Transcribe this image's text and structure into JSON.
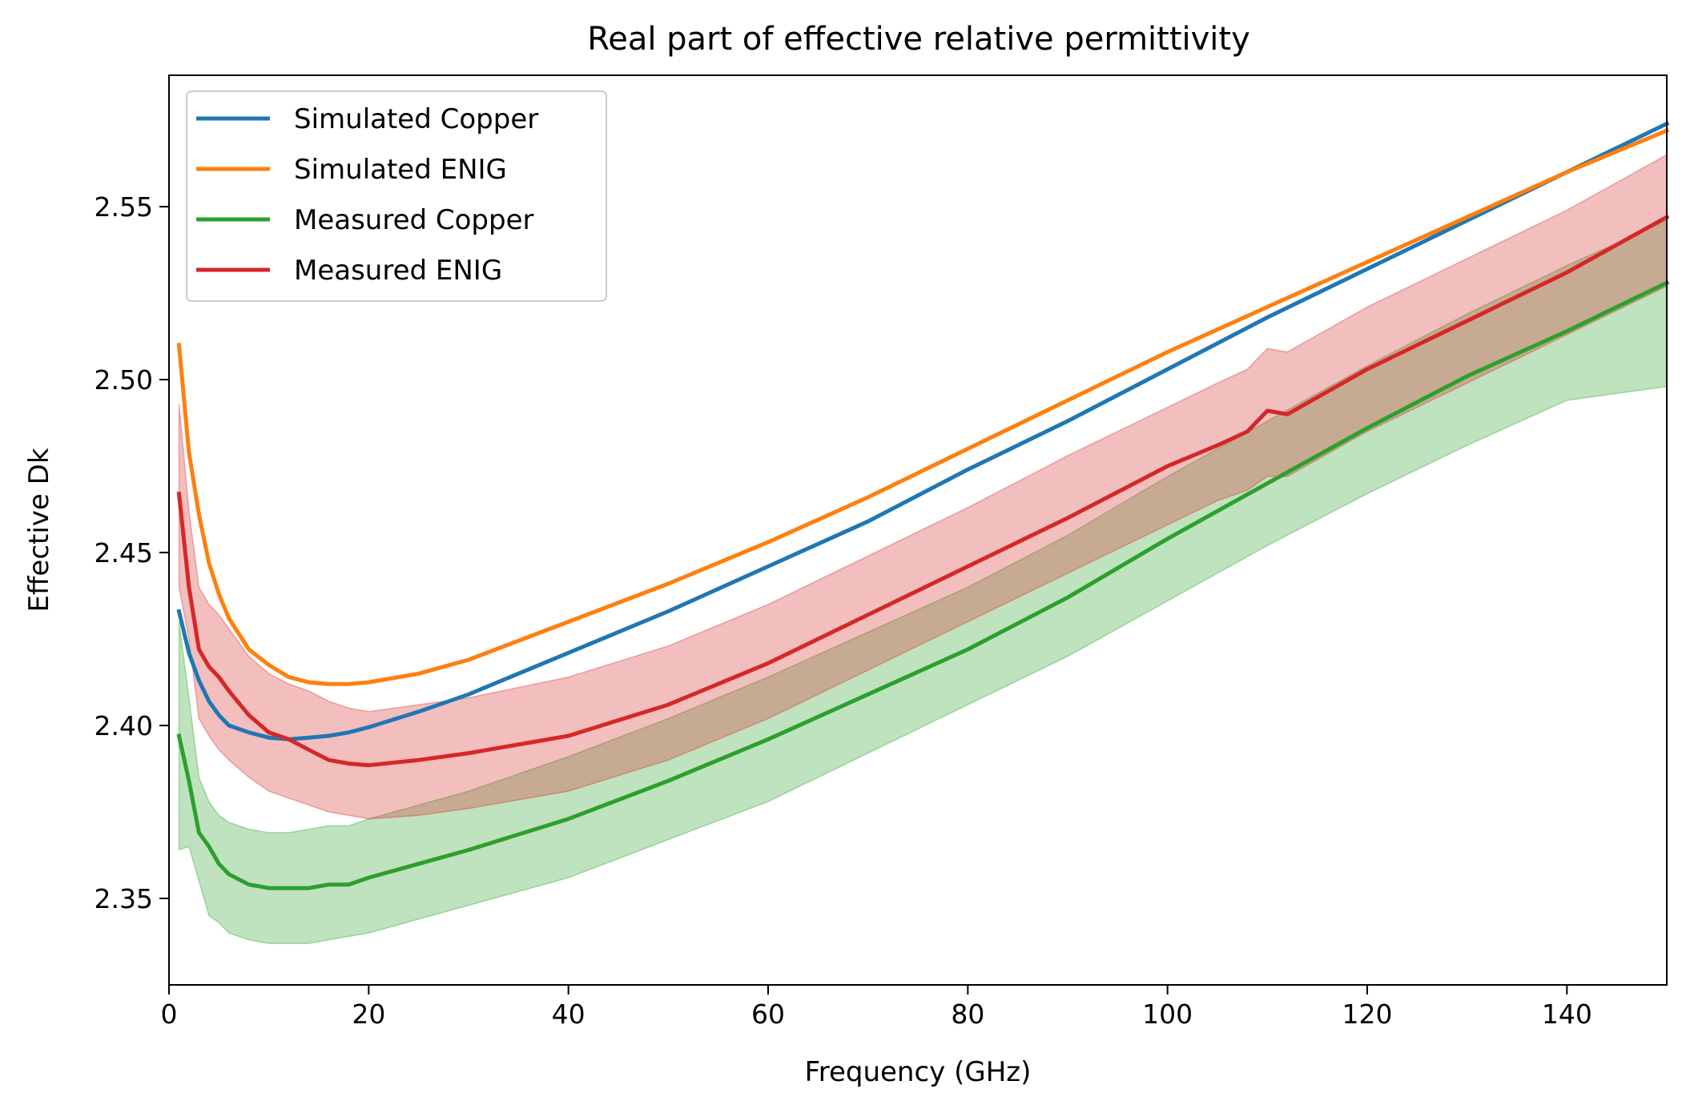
{
  "chart_data": {
    "type": "line",
    "title": "Real part of effective relative permittivity",
    "xlabel": "Frequency (GHz)",
    "ylabel": "Effective Dk",
    "xlim": [
      0,
      150
    ],
    "ylim": [
      2.325,
      2.588
    ],
    "xticks": [
      0,
      20,
      40,
      60,
      80,
      100,
      120,
      140
    ],
    "yticks": [
      2.35,
      2.4,
      2.45,
      2.5,
      2.55
    ],
    "ytick_labels": [
      "2.35",
      "2.40",
      "2.45",
      "2.50",
      "2.55"
    ],
    "grid": false,
    "legend": "upper-left",
    "series": [
      {
        "name": "Simulated Copper",
        "color": "#1f77b4",
        "x": [
          1,
          2,
          3,
          4,
          5,
          6,
          8,
          10,
          12,
          14,
          16,
          18,
          20,
          25,
          30,
          40,
          50,
          60,
          70,
          80,
          90,
          100,
          110,
          120,
          130,
          140,
          150
        ],
        "y": [
          2.433,
          2.421,
          2.413,
          2.407,
          2.403,
          2.4,
          2.398,
          2.3965,
          2.396,
          2.3965,
          2.397,
          2.398,
          2.3995,
          2.404,
          2.409,
          2.421,
          2.433,
          2.446,
          2.459,
          2.474,
          2.488,
          2.503,
          2.518,
          2.532,
          2.546,
          2.56,
          2.574
        ]
      },
      {
        "name": "Simulated ENIG",
        "color": "#ff7f0e",
        "x": [
          1,
          2,
          3,
          4,
          5,
          6,
          8,
          10,
          12,
          14,
          16,
          18,
          20,
          25,
          30,
          40,
          50,
          60,
          70,
          80,
          90,
          100,
          110,
          120,
          130,
          140,
          150
        ],
        "y": [
          2.51,
          2.479,
          2.461,
          2.447,
          2.438,
          2.431,
          2.422,
          2.4175,
          2.414,
          2.4125,
          2.412,
          2.412,
          2.4125,
          2.415,
          2.419,
          2.43,
          2.441,
          2.453,
          2.466,
          2.48,
          2.494,
          2.508,
          2.521,
          2.534,
          2.547,
          2.56,
          2.572
        ]
      },
      {
        "name": "Measured Copper",
        "color": "#2ca02c",
        "x": [
          1,
          2,
          3,
          4,
          5,
          6,
          8,
          10,
          12,
          14,
          16,
          18,
          20,
          25,
          30,
          40,
          50,
          60,
          70,
          80,
          90,
          100,
          110,
          120,
          130,
          140,
          150
        ],
        "y": [
          2.397,
          2.384,
          2.369,
          2.365,
          2.36,
          2.357,
          2.354,
          2.353,
          2.353,
          2.353,
          2.354,
          2.354,
          2.356,
          2.36,
          2.364,
          2.373,
          2.384,
          2.396,
          2.409,
          2.422,
          2.437,
          2.454,
          2.47,
          2.486,
          2.501,
          2.514,
          2.528
        ],
        "band_low": [
          2.364,
          2.365,
          2.355,
          2.345,
          2.343,
          2.34,
          2.338,
          2.337,
          2.337,
          2.337,
          2.338,
          2.339,
          2.34,
          2.344,
          2.348,
          2.356,
          2.367,
          2.378,
          2.392,
          2.406,
          2.42,
          2.436,
          2.452,
          2.467,
          2.481,
          2.494,
          2.498
        ],
        "band_high": [
          2.43,
          2.408,
          2.385,
          2.378,
          2.374,
          2.372,
          2.37,
          2.369,
          2.369,
          2.37,
          2.371,
          2.371,
          2.373,
          2.377,
          2.381,
          2.391,
          2.402,
          2.414,
          2.427,
          2.44,
          2.455,
          2.472,
          2.488,
          2.504,
          2.519,
          2.533,
          2.546
        ]
      },
      {
        "name": "Measured ENIG",
        "color": "#d62728",
        "x": [
          1,
          2,
          3,
          4,
          5,
          6,
          8,
          10,
          12,
          14,
          16,
          18,
          20,
          25,
          30,
          40,
          50,
          60,
          70,
          80,
          90,
          100,
          105,
          108,
          110,
          112,
          120,
          130,
          140,
          150
        ],
        "y": [
          2.467,
          2.44,
          2.422,
          2.417,
          2.414,
          2.41,
          2.403,
          2.398,
          2.396,
          2.393,
          2.39,
          2.389,
          2.3885,
          2.39,
          2.392,
          2.397,
          2.406,
          2.418,
          2.432,
          2.446,
          2.46,
          2.475,
          2.481,
          2.485,
          2.491,
          2.49,
          2.503,
          2.517,
          2.531,
          2.547
        ],
        "band_low": [
          2.44,
          2.425,
          2.402,
          2.397,
          2.393,
          2.39,
          2.385,
          2.381,
          2.379,
          2.377,
          2.375,
          2.374,
          2.373,
          2.374,
          2.376,
          2.381,
          2.39,
          2.402,
          2.416,
          2.43,
          2.444,
          2.458,
          2.465,
          2.468,
          2.472,
          2.472,
          2.485,
          2.499,
          2.513,
          2.527
        ],
        "band_high": [
          2.493,
          2.462,
          2.44,
          2.435,
          2.432,
          2.428,
          2.42,
          2.415,
          2.412,
          2.41,
          2.407,
          2.405,
          2.404,
          2.406,
          2.408,
          2.414,
          2.423,
          2.435,
          2.449,
          2.463,
          2.478,
          2.492,
          2.499,
          2.503,
          2.509,
          2.508,
          2.521,
          2.535,
          2.549,
          2.565
        ]
      }
    ]
  }
}
